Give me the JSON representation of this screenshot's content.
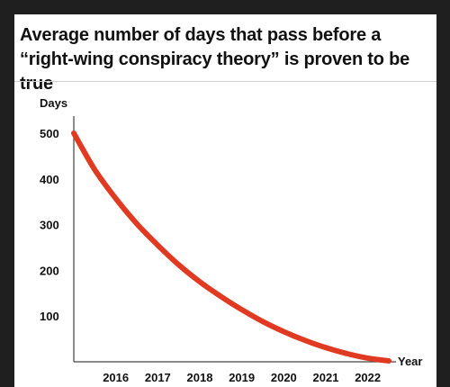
{
  "title": "Average number of days that pass before a “right-wing conspiracy theory” is proven to be true",
  "chart_data": {
    "type": "line",
    "title": "Average number of days that pass before a “right-wing conspiracy theory” is proven to be true",
    "ylabel": "Days",
    "xlabel": "Year",
    "x": [
      2015,
      2015.5,
      2016,
      2016.5,
      2017,
      2017.5,
      2018,
      2018.5,
      2019,
      2019.5,
      2020,
      2020.5,
      2021,
      2021.5,
      2022,
      2022.5
    ],
    "x_ticks": [
      "2016",
      "2017",
      "2018",
      "2019",
      "2020",
      "2021",
      "2022"
    ],
    "y_ticks": [
      100,
      200,
      300,
      400,
      500
    ],
    "xlim": [
      2015,
      2022.5
    ],
    "ylim": [
      0,
      500
    ],
    "grid": false,
    "series": [
      {
        "color": "#e03a22",
        "values": [
          500,
          420,
          357,
          302,
          255,
          212,
          175,
          143,
          114,
          88,
          66,
          47,
          31,
          18,
          8,
          2
        ]
      }
    ]
  }
}
